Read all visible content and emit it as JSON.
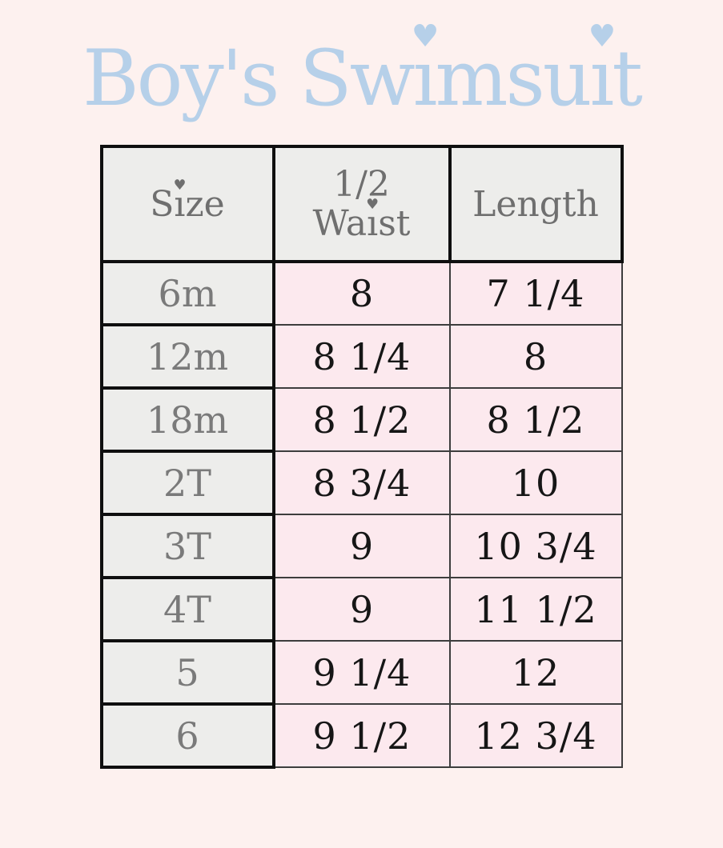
{
  "title": {
    "text": "Boy's Swimsuit"
  },
  "header": {
    "size": "Size",
    "waist_line1": "1/2",
    "waist_line2": "Waist",
    "length": "Length"
  },
  "chart_data": {
    "type": "table",
    "title": "Boy's Swimsuit",
    "columns": [
      "Size",
      "1/2 Waist",
      "Length"
    ],
    "rows": [
      [
        "6m",
        "8",
        "7 1/4"
      ],
      [
        "12m",
        "8 1/4",
        "8"
      ],
      [
        "18m",
        "8 1/2",
        "8 1/2"
      ],
      [
        "2T",
        "8 3/4",
        "10"
      ],
      [
        "3T",
        "9",
        "10 3/4"
      ],
      [
        "4T",
        "9",
        "11 1/2"
      ],
      [
        "5",
        "9 1/4",
        "12"
      ],
      [
        "6",
        "9 1/2",
        "12 3/4"
      ]
    ]
  },
  "colors": {
    "background": "#fdf1ef",
    "title_blue": "#b6d0e9",
    "header_bg": "#ededeb",
    "value_cell_pink": "#fce9ee",
    "header_text_gray": "#6f6f6f",
    "value_text": "#161616",
    "thick_border": "#0f0f0f",
    "thin_border": "#3d3d3d"
  },
  "icons": {
    "heart_dot": "♥"
  }
}
